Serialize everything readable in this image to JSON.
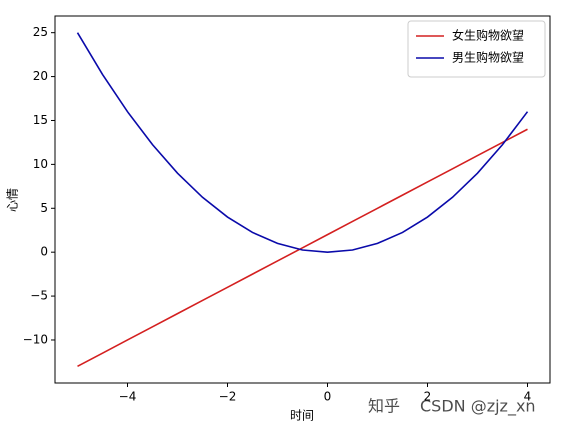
{
  "chart_data": {
    "type": "line",
    "xlabel": "时间",
    "ylabel": "心情",
    "x": [
      -5,
      -4.5,
      -4,
      -3.5,
      -3,
      -2.5,
      -2,
      -1.5,
      -1,
      -0.5,
      0,
      0.5,
      1,
      1.5,
      2,
      2.5,
      3,
      3.5,
      4
    ],
    "series": [
      {
        "name": "女生购物欲望",
        "color": "#d42020",
        "values": [
          -13,
          -11.5,
          -10,
          -8.5,
          -7,
          -5.5,
          -4,
          -2.5,
          -1,
          0.5,
          2,
          3.5,
          5,
          6.5,
          8,
          9.5,
          11,
          12.5,
          14
        ]
      },
      {
        "name": "男生购物欲望",
        "color": "#0a0aaa",
        "values": [
          25,
          20.25,
          16,
          12.25,
          9,
          6.25,
          4,
          2.25,
          1,
          0.25,
          0,
          0.25,
          1,
          2.25,
          4,
          6.25,
          9,
          12.25,
          16
        ]
      }
    ],
    "xlim": [
      -5.45,
      4.45
    ],
    "xticks": [
      {
        "value": -4,
        "label": "−4"
      },
      {
        "value": -2,
        "label": "−2"
      },
      0,
      2,
      4
    ],
    "ylim": [
      -14.9,
      26.9
    ],
    "yticks": [
      {
        "value": -10,
        "label": "−10"
      },
      {
        "value": -5,
        "label": "−5"
      },
      0,
      5,
      10,
      15,
      20,
      25
    ],
    "legend": "upper right",
    "watermarks": [
      "知乎",
      "CSDN @zjz_xn"
    ]
  }
}
